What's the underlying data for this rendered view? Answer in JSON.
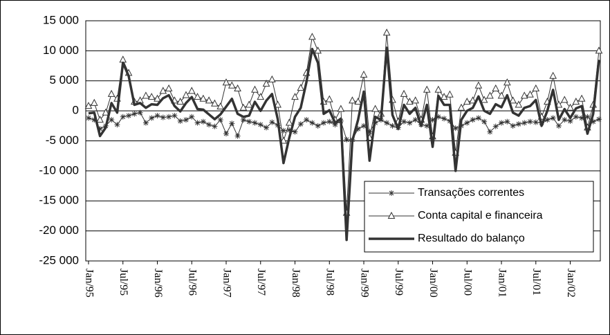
{
  "chart_data": {
    "type": "line",
    "categories": [
      "Jan/95",
      null,
      null,
      null,
      null,
      null,
      "Jul/95",
      null,
      null,
      null,
      null,
      null,
      "Jan/96",
      null,
      null,
      null,
      null,
      null,
      "Jul/96",
      null,
      null,
      null,
      null,
      null,
      "Jan/97",
      null,
      null,
      null,
      null,
      null,
      "Jul/97",
      null,
      null,
      null,
      null,
      null,
      "Jan/98",
      null,
      null,
      null,
      null,
      null,
      "Jul/98",
      null,
      null,
      null,
      null,
      null,
      "Jan/99",
      null,
      null,
      null,
      null,
      null,
      "Jul/99",
      null,
      null,
      null,
      null,
      null,
      "Jan/00",
      null,
      null,
      null,
      null,
      null,
      "Jul/00",
      null,
      null,
      null,
      null,
      null,
      "Jan/01",
      null,
      null,
      null,
      null,
      null,
      "Jul/01",
      null,
      null,
      null,
      null,
      null,
      "Jan/02",
      null,
      null,
      null,
      null,
      null
    ],
    "series": [
      {
        "name": "Transações correntes",
        "color": "#333333",
        "marker": "star",
        "width": 1,
        "values": [
          -1200,
          -1500,
          -3000,
          -2500,
          -1500,
          -2300,
          -1000,
          -800,
          -500,
          -300,
          -2000,
          -1200,
          -800,
          -1100,
          -1000,
          -800,
          -1700,
          -1500,
          -1000,
          -2000,
          -1800,
          -2300,
          -2600,
          -1500,
          -3800,
          -2100,
          -4200,
          -1500,
          -1800,
          -2000,
          -2300,
          -2800,
          -1900,
          -2400,
          -3300,
          -3200,
          -3500,
          -2200,
          -1500,
          -2000,
          -2500,
          -2000,
          -1800,
          -2300,
          -1700,
          -4800,
          -4800,
          -3000,
          -2500,
          -3500,
          -2000,
          -1500,
          -2000,
          -2500,
          -2800,
          -1800,
          -2000,
          -1500,
          -2300,
          -2500,
          -1500,
          -1000,
          -1300,
          -1700,
          -2900,
          -2500,
          -2000,
          -1500,
          -1200,
          -1800,
          -3500,
          -2600,
          -2000,
          -1800,
          -2500,
          -2200,
          -2000,
          -1800,
          -1900,
          -2000,
          -1500,
          -1200,
          -2500,
          -1500,
          -1700,
          -1000,
          -1200,
          -1000,
          -1800,
          -1400
        ]
      },
      {
        "name": "Conta capital e financeira",
        "color": "#333333",
        "marker": "triangle",
        "width": 1,
        "values": [
          800,
          1300,
          -1500,
          -300,
          2800,
          2000,
          8500,
          6300,
          1500,
          1700,
          2500,
          2300,
          2000,
          3300,
          3700,
          1700,
          1500,
          2600,
          3300,
          2300,
          2000,
          1700,
          1200,
          700,
          4700,
          4200,
          3700,
          500,
          1000,
          3500,
          2300,
          4500,
          5200,
          1000,
          -5000,
          -2000,
          2300,
          3800,
          6300,
          12300,
          10000,
          1500,
          1900,
          -1500,
          300,
          -17000,
          1700,
          1500,
          6000,
          -4500,
          300,
          -500,
          13000,
          1800,
          -1800,
          2800,
          1500,
          1700,
          -1500,
          3500,
          -4300,
          3500,
          2300,
          2700,
          -7000,
          500,
          1500,
          1700,
          4200,
          1800,
          2500,
          3700,
          2500,
          4700,
          1700,
          1000,
          2500,
          2700,
          3700,
          -1000,
          1500,
          5800,
          1000,
          1800,
          500,
          1500,
          2000,
          -2800,
          1000,
          10000
        ]
      },
      {
        "name": "Resultado do balanço",
        "color": "#333333",
        "width": 3.5,
        "values": [
          -400,
          -300,
          -4200,
          -2800,
          1300,
          -300,
          8000,
          5800,
          1000,
          1300,
          500,
          1100,
          1000,
          2100,
          2600,
          800,
          -100,
          1300,
          2300,
          300,
          200,
          -600,
          -1400,
          -600,
          700,
          2000,
          -500,
          -1000,
          -800,
          1500,
          0,
          1700,
          2800,
          -1400,
          -8700,
          -4500,
          -1000,
          500,
          4800,
          10300,
          8000,
          -500,
          100,
          -2000,
          -1300,
          -21500,
          -5000,
          -1500,
          3200,
          -8300,
          -1000,
          -1500,
          10500,
          -700,
          -3000,
          1000,
          -500,
          500,
          -2500,
          1000,
          -6000,
          2500,
          1000,
          1000,
          -10000,
          -1500,
          0,
          500,
          2400,
          0,
          -500,
          1100,
          600,
          2600,
          -300,
          -800,
          500,
          800,
          1800,
          -2500,
          0,
          3500,
          -1500,
          300,
          -1200,
          400,
          800,
          -3800,
          -500,
          8500
        ]
      }
    ],
    "ylim": [
      -25000,
      15000
    ],
    "yticks": [
      {
        "value": -25000,
        "label": "-25 000"
      },
      {
        "value": -20000,
        "label": "-20 000"
      },
      {
        "value": -15000,
        "label": "-15 000"
      },
      {
        "value": -10000,
        "label": "-10 000"
      },
      {
        "value": -5000,
        "label": "-5 000"
      },
      0,
      {
        "value": 5000,
        "label": "5 000"
      },
      {
        "value": 10000,
        "label": "10 000"
      },
      {
        "value": 15000,
        "label": "15 000"
      }
    ],
    "grid": true,
    "legend": "lower right"
  }
}
